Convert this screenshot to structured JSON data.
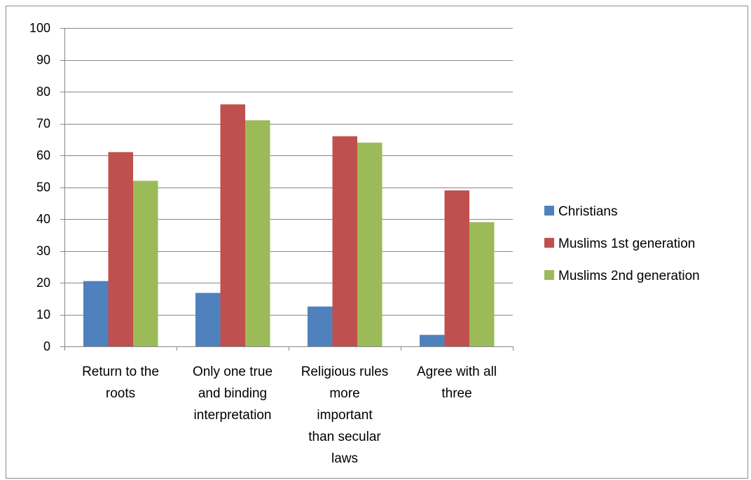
{
  "chart_data": {
    "type": "bar",
    "categories": [
      "Return to the roots",
      "Only one true and binding interpretation",
      "Religious rules more important than secular laws",
      "Agree with all three"
    ],
    "category_label_lines": [
      [
        "Return to the",
        "roots"
      ],
      [
        "Only one true",
        "and binding",
        "interpretation"
      ],
      [
        "Religious rules",
        "more",
        "important",
        "than secular",
        "laws"
      ],
      [
        "Agree with all",
        "three"
      ]
    ],
    "series": [
      {
        "name": "Christians",
        "color": "#4f81bd",
        "values": [
          20.5,
          16.8,
          12.5,
          3.6
        ]
      },
      {
        "name": "Muslims 1st generation",
        "color": "#c0504d",
        "values": [
          61,
          76,
          66,
          49
        ]
      },
      {
        "name": "Muslims 2nd generation",
        "color": "#9bbb59",
        "values": [
          52,
          71,
          64,
          39
        ]
      }
    ],
    "title": "",
    "xlabel": "",
    "ylabel": "",
    "ylim": [
      0,
      100
    ],
    "yticks": [
      0,
      10,
      20,
      30,
      40,
      50,
      60,
      70,
      80,
      90,
      100
    ],
    "grid": true,
    "legend_position": "right"
  }
}
